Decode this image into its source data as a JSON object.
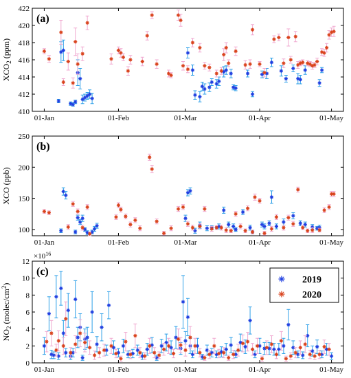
{
  "colors": {
    "s2019": "#1f3fe0",
    "s2019_err": "#2b9fe8",
    "s2020": "#d9421c",
    "s2020_err": "#f0a8d0"
  },
  "legend": {
    "labels": [
      "2019",
      "2020"
    ]
  },
  "chart_data": [
    {
      "type": "scatter",
      "panel": "(a)",
      "ylabel_main": "XCO",
      "ylabel_sub": "2",
      "ylabel_unit": " (ppm)",
      "xlim": [
        -5,
        125
      ],
      "ylim": [
        410,
        422
      ],
      "yticks": [
        "410",
        "412",
        "414",
        "416",
        "418",
        "420",
        "422"
      ],
      "xtick_days": [
        0,
        31,
        59,
        90,
        120
      ],
      "xtick_labels": [
        "01-Jan",
        "01-Feb",
        "01-Mar",
        "01-Apr",
        "01-May"
      ],
      "grid": true,
      "series": [
        {
          "name": "2019",
          "x": [
            6,
            7,
            8,
            11,
            12,
            13,
            14,
            15,
            16,
            17,
            18,
            19,
            20,
            60,
            62,
            63,
            65,
            66,
            67,
            69,
            70,
            72,
            73,
            75,
            76,
            78,
            79,
            80,
            85,
            87,
            91,
            93,
            95,
            99,
            101,
            104,
            106,
            107,
            109,
            115,
            116
          ],
          "y": [
            411.2,
            416.9,
            417.1,
            410.9,
            410.8,
            411.1,
            414.5,
            413.8,
            411.4,
            411.6,
            411.8,
            412.0,
            411.5,
            416.8,
            414.8,
            411.9,
            411.7,
            412.9,
            412.6,
            412.8,
            413.4,
            413.2,
            413.5,
            414.6,
            414.8,
            414.4,
            412.8,
            412.7,
            414.4,
            412.0,
            414.3,
            414.4,
            415.7,
            414.7,
            413.8,
            415.0,
            413.8,
            413.7,
            414.8,
            413.3,
            414.8
          ],
          "err": [
            0.2,
            1.2,
            1.2,
            0.2,
            0.2,
            0.2,
            1.5,
            1.2,
            0.5,
            0.4,
            0.4,
            0.5,
            0.6,
            0.6,
            0.6,
            0.5,
            0.6,
            0.5,
            0.6,
            0.5,
            0.4,
            0.5,
            0.5,
            0.6,
            0.5,
            0.5,
            0.3,
            0.3,
            0.4,
            0.3,
            0.4,
            0.6,
            0.5,
            0.6,
            0.4,
            0.4,
            0.6,
            0.5,
            0.5,
            0.4,
            0.3
          ]
        },
        {
          "name": "2020",
          "x": [
            0,
            2,
            7,
            8,
            10,
            12,
            13,
            14,
            16,
            18,
            28,
            31,
            32,
            33,
            35,
            36,
            41,
            43,
            45,
            47,
            52,
            53,
            56,
            57,
            58,
            60,
            62,
            65,
            67,
            69,
            72,
            74,
            75,
            76,
            77,
            80,
            84,
            86,
            87,
            90,
            92,
            96,
            98,
            100,
            102,
            103,
            105,
            106,
            107,
            108,
            110,
            111,
            112,
            113,
            114,
            116,
            117,
            118,
            119,
            120,
            121
          ],
          "y": [
            417.0,
            416.1,
            419.2,
            413.4,
            415.8,
            413.3,
            418.1,
            415.5,
            416.7,
            420.3,
            416.1,
            417.1,
            416.8,
            416.3,
            414.7,
            416.0,
            415.8,
            418.8,
            421.2,
            415.5,
            414.4,
            414.2,
            421.2,
            420.6,
            415.3,
            414.9,
            418.0,
            417.4,
            415.3,
            415.1,
            414.4,
            414.7,
            416.6,
            417.4,
            415.6,
            417.0,
            415.4,
            415.5,
            419.5,
            415.5,
            414.5,
            418.4,
            418.6,
            415.6,
            418.6,
            416.0,
            418.7,
            415.4,
            415.6,
            415.7,
            415.6,
            415.5,
            415.3,
            415.4,
            415.8,
            416.9,
            416.8,
            417.4,
            418.9,
            419.2,
            419.3
          ],
          "err": [
            0.3,
            0.4,
            1.4,
            0.4,
            1.0,
            0.6,
            1.6,
            1.2,
            0.8,
            0.8,
            0.6,
            0.4,
            0.5,
            0.4,
            0.5,
            0.5,
            0.5,
            0.5,
            0.4,
            0.5,
            0.4,
            0.3,
            0.6,
            0.7,
            0.5,
            0.4,
            0.5,
            0.5,
            0.4,
            0.4,
            0.4,
            0.4,
            0.7,
            0.6,
            0.4,
            0.5,
            0.5,
            0.5,
            0.6,
            0.3,
            0.5,
            0.4,
            0.4,
            0.5,
            1.0,
            0.4,
            0.6,
            0.4,
            0.3,
            0.3,
            0.3,
            0.3,
            0.4,
            0.3,
            0.4,
            0.4,
            0.4,
            0.5,
            0.5,
            0.5,
            0.6
          ]
        }
      ]
    },
    {
      "type": "scatter",
      "panel": "(b)",
      "ylabel_main": "XCO (ppb)",
      "xlim": [
        -5,
        125
      ],
      "ylim": [
        90,
        250
      ],
      "yticks": [
        "100",
        "150",
        "200",
        "250"
      ],
      "ytick_values": [
        100,
        150,
        200,
        250
      ],
      "xtick_days": [
        0,
        31,
        59,
        90,
        120
      ],
      "xtick_labels": [
        "01-Jan",
        "01-Feb",
        "01-Mar",
        "01-Apr",
        "01-May"
      ],
      "grid": true,
      "series": [
        {
          "name": "2019",
          "x": [
            7,
            8,
            9,
            13,
            14,
            15,
            16,
            17,
            18,
            20,
            21,
            22,
            59,
            60,
            61,
            63,
            65,
            68,
            70,
            72,
            73,
            75,
            77,
            79,
            80,
            83,
            86,
            87,
            91,
            92,
            94,
            95,
            97,
            100,
            104,
            107,
            109,
            112,
            114,
            115
          ],
          "y": [
            98,
            161,
            155,
            96,
            119,
            112,
            118,
            100,
            95,
            96,
            101,
            106,
            118,
            159,
            162,
            98,
            107,
            102,
            103,
            103,
            105,
            131,
            108,
            105,
            100,
            128,
            103,
            96,
            108,
            105,
            110,
            152,
            105,
            112,
            122,
            110,
            108,
            104,
            102,
            103
          ],
          "err": [
            3,
            6,
            6,
            3,
            4,
            4,
            5,
            3,
            3,
            3,
            4,
            4,
            5,
            5,
            5,
            4,
            5,
            4,
            3,
            3,
            4,
            5,
            4,
            4,
            3,
            4,
            4,
            3,
            4,
            4,
            4,
            10,
            4,
            5,
            5,
            4,
            4,
            4,
            3,
            4
          ],
          "marker": "*"
        },
        {
          "name": "2020",
          "x": [
            0,
            2,
            10,
            12,
            14,
            16,
            18,
            19,
            30,
            31,
            32,
            34,
            36,
            38,
            40,
            44,
            45,
            47,
            50,
            53,
            56,
            58,
            60,
            62,
            65,
            67,
            70,
            72,
            74,
            76,
            78,
            80,
            82,
            84,
            85,
            87,
            88,
            90,
            92,
            95,
            97,
            100,
            102,
            104,
            106,
            108,
            110,
            112,
            115,
            117,
            119,
            120,
            121
          ],
          "y": [
            129,
            127,
            104,
            141,
            129,
            103,
            136,
            93,
            120,
            139,
            132,
            121,
            108,
            115,
            102,
            216,
            197,
            113,
            94,
            102,
            133,
            136,
            109,
            103,
            105,
            133,
            101,
            103,
            103,
            99,
            98,
            125,
            105,
            98,
            134,
            96,
            152,
            146,
            94,
            101,
            120,
            103,
            119,
            109,
            164,
            103,
            98,
            99,
            99,
            131,
            136,
            157,
            157
          ],
          "err": [
            3,
            3,
            4,
            4,
            4,
            4,
            4,
            3,
            4,
            4,
            4,
            4,
            4,
            4,
            4,
            5,
            6,
            4,
            3,
            4,
            4,
            4,
            4,
            4,
            4,
            4,
            4,
            3,
            4,
            4,
            3,
            4,
            4,
            3,
            4,
            3,
            5,
            4,
            3,
            4,
            4,
            4,
            4,
            4,
            4,
            3,
            3,
            4,
            3,
            4,
            4,
            4,
            4
          ]
        }
      ]
    },
    {
      "type": "scatter",
      "panel": "(c)",
      "ylabel_main": "NO",
      "ylabel_sub": "2",
      "ylabel_unit": " (molec/cm",
      "ylabel_sup": "2",
      "ylabel_close": ")",
      "exponent_base": "×10",
      "exponent": "16",
      "xlim": [
        -5,
        125
      ],
      "ylim": [
        0,
        12
      ],
      "yticks": [
        "0",
        "2",
        "4",
        "6",
        "8",
        "10",
        "12"
      ],
      "xtick_days": [
        0,
        31,
        59,
        90,
        120
      ],
      "xtick_labels": [
        "01-Jan",
        "01-Feb",
        "01-Mar",
        "01-Apr",
        "01-May"
      ],
      "grid": true,
      "series": [
        {
          "name": "2019",
          "x": [
            0,
            2,
            3,
            4,
            5,
            6,
            7,
            8,
            9,
            10,
            11,
            12,
            13,
            14,
            15,
            16,
            17,
            18,
            20,
            22,
            24,
            26,
            27,
            29,
            31,
            33,
            35,
            37,
            39,
            41,
            43,
            45,
            47,
            49,
            51,
            53,
            55,
            57,
            58,
            59,
            60,
            61,
            62,
            64,
            66,
            68,
            70,
            72,
            74,
            76,
            78,
            80,
            82,
            84,
            86,
            88,
            90,
            92,
            94,
            96,
            98,
            100,
            102,
            104,
            106,
            108,
            110,
            112,
            114,
            116,
            118,
            120
          ],
          "y": [
            2.0,
            5.8,
            1.0,
            0.9,
            7.8,
            0.8,
            8.8,
            3.5,
            1.2,
            6.2,
            0.8,
            1.2,
            7.5,
            3.0,
            4.2,
            0.6,
            2.8,
            3.0,
            6.0,
            2.2,
            4.2,
            1.5,
            6.8,
            1.8,
            1.2,
            2.0,
            1.0,
            1.1,
            1.5,
            0.8,
            1.6,
            2.1,
            0.6,
            2.0,
            2.4,
            1.8,
            3.0,
            1.7,
            7.2,
            2.6,
            5.4,
            2.0,
            1.0,
            2.0,
            0.7,
            1.5,
            1.2,
            1.0,
            1.3,
            1.6,
            2.1,
            1.0,
            2.4,
            1.9,
            5.0,
            1.0,
            2.0,
            1.7,
            1.7,
            1.6,
            1.6,
            2.0,
            4.5,
            1.8,
            1.0,
            0.9,
            3.2,
            1.4,
            1.9,
            1.0,
            1.6,
            0.8
          ],
          "err": [
            1.0,
            2.0,
            0.5,
            0.4,
            2.5,
            0.4,
            2.0,
            1.5,
            0.5,
            2.0,
            0.4,
            0.5,
            2.2,
            1.2,
            1.6,
            0.3,
            1.2,
            1.2,
            2.4,
            0.9,
            1.6,
            0.6,
            1.6,
            0.8,
            0.5,
            0.8,
            0.4,
            0.5,
            0.6,
            0.4,
            0.7,
            0.9,
            0.3,
            0.8,
            1.0,
            0.8,
            1.3,
            0.7,
            3.1,
            1.1,
            2.2,
            0.9,
            0.4,
            0.9,
            0.3,
            0.6,
            0.5,
            0.4,
            0.6,
            0.7,
            0.9,
            0.4,
            1.0,
            0.8,
            1.6,
            0.4,
            0.9,
            0.7,
            0.7,
            0.7,
            0.7,
            0.9,
            1.8,
            0.8,
            0.4,
            0.4,
            1.3,
            0.6,
            0.8,
            0.4,
            0.7,
            0.4
          ]
        },
        {
          "name": "2020",
          "x": [
            1,
            3,
            5,
            6,
            8,
            9,
            11,
            13,
            15,
            17,
            19,
            21,
            23,
            25,
            28,
            30,
            32,
            34,
            36,
            38,
            40,
            42,
            44,
            46,
            48,
            50,
            52,
            54,
            56,
            57,
            59,
            61,
            63,
            65,
            67,
            69,
            71,
            73,
            75,
            77,
            79,
            81,
            83,
            85,
            87,
            89,
            91,
            93,
            95,
            97,
            99,
            101,
            103,
            105,
            107,
            109,
            111,
            113,
            115,
            117,
            119
          ],
          "y": [
            2.5,
            3.5,
            1.5,
            2.6,
            2.0,
            5.2,
            1.2,
            2.2,
            3.5,
            2.4,
            1.8,
            0.9,
            1.2,
            1.5,
            2.0,
            1.1,
            0.5,
            2.5,
            1.0,
            3.2,
            1.2,
            0.8,
            2.0,
            1.2,
            0.9,
            1.6,
            2.0,
            1.1,
            2.8,
            2.1,
            1.5,
            3.0,
            2.0,
            1.2,
            0.6,
            1.0,
            2.0,
            1.1,
            1.2,
            0.6,
            1.0,
            1.5,
            2.3,
            2.5,
            1.6,
            2.0,
            0.5,
            1.8,
            2.2,
            1.0,
            2.6,
            0.5,
            0.8,
            1.2,
            1.8,
            2.2,
            1.0,
            0.8,
            1.0,
            1.9,
            1.6
          ],
          "err": [
            1.2,
            1.5,
            0.7,
            1.2,
            1.0,
            2.0,
            0.6,
            1.0,
            1.6,
            1.1,
            0.8,
            0.5,
            0.6,
            0.7,
            0.9,
            0.5,
            0.3,
            1.1,
            0.5,
            1.4,
            0.6,
            0.4,
            0.9,
            0.6,
            0.4,
            0.7,
            0.9,
            0.5,
            1.2,
            0.9,
            0.7,
            1.3,
            0.9,
            0.5,
            0.3,
            0.5,
            0.9,
            0.5,
            0.6,
            0.3,
            0.5,
            0.7,
            1.0,
            1.1,
            0.7,
            0.9,
            0.3,
            0.8,
            1.0,
            0.5,
            1.1,
            0.3,
            0.4,
            0.6,
            0.8,
            1.0,
            0.5,
            0.4,
            0.5,
            0.8,
            0.7
          ]
        }
      ]
    }
  ]
}
